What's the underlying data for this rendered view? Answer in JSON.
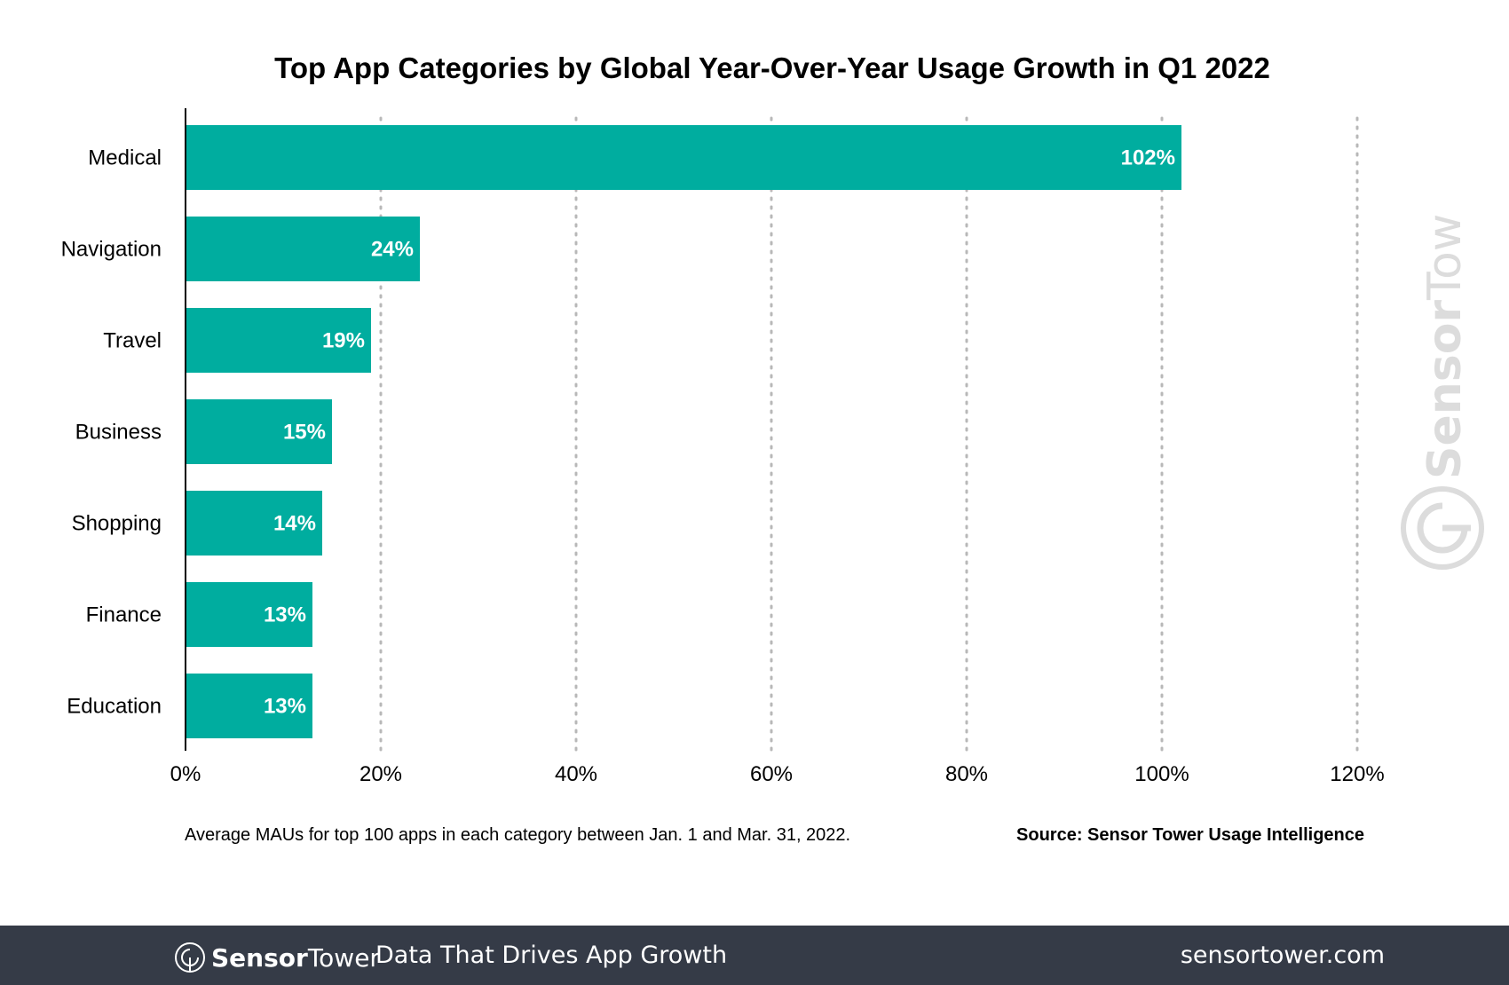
{
  "chart_data": {
    "type": "bar",
    "orientation": "horizontal",
    "title": "Top App Categories by Global Year-Over-Year Usage Growth in Q1 2022",
    "categories": [
      "Medical",
      "Navigation",
      "Travel",
      "Business",
      "Shopping",
      "Finance",
      "Education"
    ],
    "values": [
      102,
      24,
      19,
      15,
      14,
      13,
      13
    ],
    "data_labels": [
      "102%",
      "24%",
      "19%",
      "15%",
      "14%",
      "13%",
      "13%"
    ],
    "xlim": [
      0,
      120
    ],
    "x_ticks": [
      0,
      20,
      40,
      60,
      80,
      100,
      120
    ],
    "x_tick_labels": [
      "0%",
      "20%",
      "40%",
      "60%",
      "80%",
      "100%",
      "120%"
    ],
    "xlabel": "",
    "ylabel": "",
    "grid": "vertical dotted",
    "bar_color": "#00ad9f"
  },
  "footnote": "Average MAUs for top 100 apps in each category between Jan. 1 and Mar. 31, 2022.",
  "source": "Source: Sensor Tower Usage Intelligence",
  "watermark": "SensorTower",
  "footer": {
    "brand_bold": "Sensor",
    "brand_light": "Tower",
    "tagline": "Data That Drives App Growth",
    "url": "sensortower.com",
    "background": "#353b47"
  }
}
